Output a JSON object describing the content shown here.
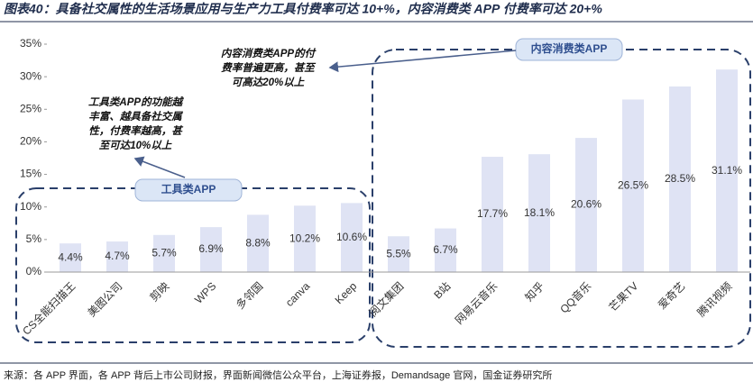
{
  "chart_data": {
    "type": "bar",
    "title": "图表40：具备社交属性的生活场景应用与生产力工具付费率可达 10+%，内容消费类 APP 付费率可达 20+%",
    "categories": [
      "CS全能扫描王",
      "美图公司",
      "剪映",
      "WPS",
      "多邻国",
      "canva",
      "Keep",
      "阅文集团",
      "B站",
      "网易云音乐",
      "知乎",
      "QQ音乐",
      "芒果TV",
      "爱奇艺",
      "腾讯视频"
    ],
    "values": [
      4.4,
      4.7,
      5.7,
      6.9,
      8.8,
      10.2,
      10.6,
      5.5,
      6.7,
      17.7,
      18.1,
      20.6,
      26.5,
      28.5,
      31.1
    ],
    "value_labels": [
      "4.4%",
      "4.7%",
      "5.7%",
      "6.9%",
      "8.8%",
      "10.2%",
      "10.6%",
      "5.5%",
      "6.7%",
      "17.7%",
      "18.1%",
      "20.6%",
      "26.5%",
      "28.5%",
      "31.1%"
    ],
    "color": "#dfe3f4",
    "ylim": [
      0,
      35
    ],
    "yticks": [
      {
        "value": 0,
        "label": "0%"
      },
      {
        "value": 5,
        "label": "5%"
      },
      {
        "value": 10,
        "label": "10%"
      },
      {
        "value": 15,
        "label": "15%"
      },
      {
        "value": 20,
        "label": "20%"
      },
      {
        "value": 25,
        "label": "25%"
      },
      {
        "value": 30,
        "label": "30%"
      },
      {
        "value": 35,
        "label": "35%"
      }
    ],
    "grid": false,
    "annotations": {
      "tool_tag": "工具类APP",
      "content_tag": "内容消费类APP",
      "tool_note": [
        "工具类APP的功能越",
        "丰富、越具备社交属",
        "性，付费率越高，甚",
        "至可达10%以上"
      ],
      "content_note": [
        "内容消费类APP的付",
        "费率普遍更高，甚至",
        "可高达20%以上"
      ]
    },
    "source": "来源：各 APP 界面，各 APP 背后上市公司财报，界面新闻微信公众平台，上海证券报，Demandsage 官网，国金证券研究所"
  }
}
